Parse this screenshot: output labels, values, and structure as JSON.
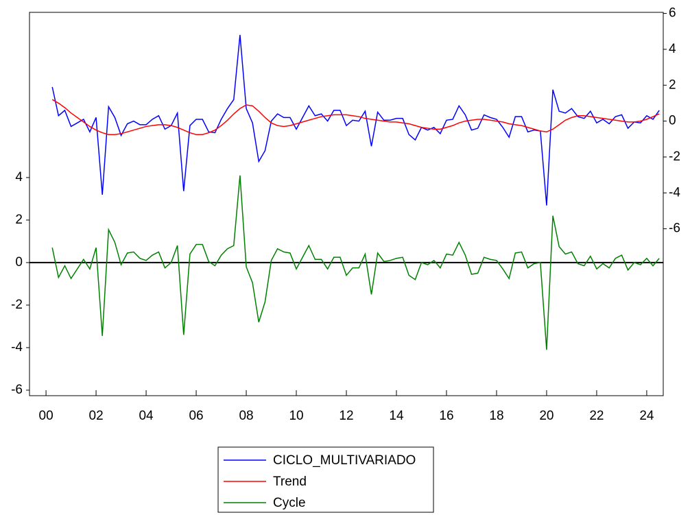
{
  "chart_data": {
    "type": "line",
    "x": [
      2000.25,
      2000.5,
      2000.75,
      2001,
      2001.25,
      2001.5,
      2001.75,
      2002,
      2002.25,
      2002.5,
      2002.75,
      2003,
      2003.25,
      2003.5,
      2003.75,
      2004,
      2004.25,
      2004.5,
      2004.75,
      2005,
      2005.25,
      2005.5,
      2005.75,
      2006,
      2006.25,
      2006.5,
      2006.75,
      2007,
      2007.25,
      2007.5,
      2007.75,
      2008,
      2008.25,
      2008.5,
      2008.75,
      2009,
      2009.25,
      2009.5,
      2009.75,
      2010,
      2010.25,
      2010.5,
      2010.75,
      2011,
      2011.25,
      2011.5,
      2011.75,
      2012,
      2012.25,
      2012.5,
      2012.75,
      2013,
      2013.25,
      2013.5,
      2013.75,
      2014,
      2014.25,
      2014.5,
      2014.75,
      2015,
      2015.25,
      2015.5,
      2015.75,
      2016,
      2016.25,
      2016.5,
      2016.75,
      2017,
      2017.25,
      2017.5,
      2017.75,
      2018,
      2018.25,
      2018.5,
      2018.75,
      2019,
      2019.25,
      2019.5,
      2019.75,
      2020,
      2020.25,
      2020.5,
      2020.75,
      2021,
      2021.25,
      2021.5,
      2021.75,
      2022,
      2022.25,
      2022.5,
      2022.75,
      2023,
      2023.25,
      2023.5,
      2023.75,
      2024,
      2024.25,
      2024.5
    ],
    "series": [
      {
        "name": "CICLO_MULTIVARIADO",
        "color": "#0000ff",
        "axis": "y2",
        "values": [
          1.9,
          0.3,
          0.6,
          -0.3,
          -0.1,
          0.1,
          -0.6,
          0.2,
          -4.1,
          0.8,
          0.2,
          -0.8,
          -0.15,
          0,
          -0.2,
          -0.2,
          0.1,
          0.3,
          -0.45,
          -0.25,
          0.45,
          -3.9,
          -0.25,
          0.1,
          0.1,
          -0.6,
          -0.65,
          0.1,
          0.7,
          1.2,
          4.8,
          0.7,
          -0.1,
          -2.25,
          -1.65,
          0,
          0.4,
          0.2,
          0.2,
          -0.45,
          0.2,
          0.85,
          0.3,
          0.4,
          0,
          0.6,
          0.6,
          -0.25,
          0.05,
          0,
          0.55,
          -1.4,
          0.5,
          0.05,
          0.05,
          0.15,
          0.15,
          -0.75,
          -1.05,
          -0.35,
          -0.5,
          -0.35,
          -0.7,
          0.05,
          0.1,
          0.85,
          0.35,
          -0.5,
          -0.4,
          0.35,
          0.2,
          0.1,
          -0.35,
          -0.9,
          0.25,
          0.25,
          -0.6,
          -0.5,
          -0.55,
          -4.7,
          1.75,
          0.55,
          0.45,
          0.7,
          0.25,
          0.15,
          0.55,
          -0.1,
          0.1,
          -0.15,
          0.25,
          0.35,
          -0.4,
          -0.05,
          -0.1,
          0.3,
          0.1,
          0.6
        ]
      },
      {
        "name": "Trend",
        "color": "#ff0000",
        "axis": "y2",
        "values": [
          1.2,
          1.0,
          0.75,
          0.45,
          0.2,
          -0.05,
          -0.3,
          -0.5,
          -0.65,
          -0.75,
          -0.75,
          -0.7,
          -0.6,
          -0.5,
          -0.4,
          -0.3,
          -0.25,
          -0.2,
          -0.2,
          -0.25,
          -0.35,
          -0.5,
          -0.65,
          -0.75,
          -0.75,
          -0.65,
          -0.5,
          -0.25,
          0.05,
          0.4,
          0.7,
          0.9,
          0.85,
          0.55,
          0.2,
          -0.1,
          -0.25,
          -0.3,
          -0.25,
          -0.15,
          -0.05,
          0.05,
          0.15,
          0.25,
          0.3,
          0.35,
          0.35,
          0.35,
          0.3,
          0.25,
          0.15,
          0.1,
          0.05,
          0.0,
          -0.05,
          -0.05,
          -0.1,
          -0.15,
          -0.25,
          -0.35,
          -0.4,
          -0.45,
          -0.45,
          -0.35,
          -0.25,
          -0.1,
          0.0,
          0.05,
          0.1,
          0.1,
          0.05,
          0.0,
          -0.05,
          -0.15,
          -0.2,
          -0.25,
          -0.35,
          -0.45,
          -0.55,
          -0.6,
          -0.45,
          -0.2,
          0.05,
          0.2,
          0.3,
          0.3,
          0.25,
          0.2,
          0.15,
          0.1,
          0.05,
          0.0,
          -0.05,
          -0.05,
          0.0,
          0.1,
          0.25,
          0.4
        ]
      },
      {
        "name": "Cycle",
        "color": "#008000",
        "axis": "y",
        "values": [
          0.7,
          -0.7,
          -0.15,
          -0.75,
          -0.3,
          0.15,
          -0.3,
          0.7,
          -3.45,
          1.55,
          0.95,
          -0.1,
          0.45,
          0.5,
          0.2,
          0.1,
          0.35,
          0.5,
          -0.25,
          0,
          0.8,
          -3.4,
          0.4,
          0.85,
          0.85,
          0.05,
          -0.15,
          0.35,
          0.65,
          0.8,
          4.1,
          -0.2,
          -0.95,
          -2.8,
          -1.85,
          0.1,
          0.65,
          0.5,
          0.45,
          -0.3,
          0.25,
          0.8,
          0.15,
          0.15,
          -0.3,
          0.25,
          0.25,
          -0.6,
          -0.25,
          -0.25,
          0.4,
          -1.5,
          0.45,
          0.05,
          0.1,
          0.2,
          0.25,
          -0.6,
          -0.8,
          0,
          -0.1,
          0.1,
          -0.25,
          0.4,
          0.35,
          0.95,
          0.35,
          -0.55,
          -0.5,
          0.25,
          0.15,
          0.1,
          -0.3,
          -0.75,
          0.45,
          0.5,
          -0.25,
          -0.05,
          0,
          -4.1,
          2.2,
          0.75,
          0.4,
          0.5,
          -0.05,
          -0.15,
          0.3,
          -0.3,
          -0.05,
          -0.25,
          0.2,
          0.35,
          -0.35,
          0,
          -0.1,
          0.2,
          -0.15,
          0.2
        ]
      }
    ],
    "xlim": [
      1999.34,
      2024.66
    ],
    "xticks": [
      {
        "value": 2000,
        "label": "00"
      },
      {
        "value": 2002,
        "label": "02"
      },
      {
        "value": 2004,
        "label": "04"
      },
      {
        "value": 2006,
        "label": "06"
      },
      {
        "value": 2008,
        "label": "08"
      },
      {
        "value": 2010,
        "label": "10"
      },
      {
        "value": 2012,
        "label": "12"
      },
      {
        "value": 2014,
        "label": "14"
      },
      {
        "value": 2016,
        "label": "16"
      },
      {
        "value": 2018,
        "label": "18"
      },
      {
        "value": 2020,
        "label": "20"
      },
      {
        "value": 2022,
        "label": "22"
      },
      {
        "value": 2024,
        "label": "24"
      }
    ],
    "ylim": [
      -6.26,
      11.77
    ],
    "yticks": [
      -6,
      -4,
      -2,
      0,
      2,
      4
    ],
    "y2lim": [
      -15.3,
      6.06
    ],
    "y2ticks": [
      -6,
      -4,
      -2,
      0,
      2,
      4,
      6
    ],
    "zero_line": true,
    "legend": "bottom"
  }
}
